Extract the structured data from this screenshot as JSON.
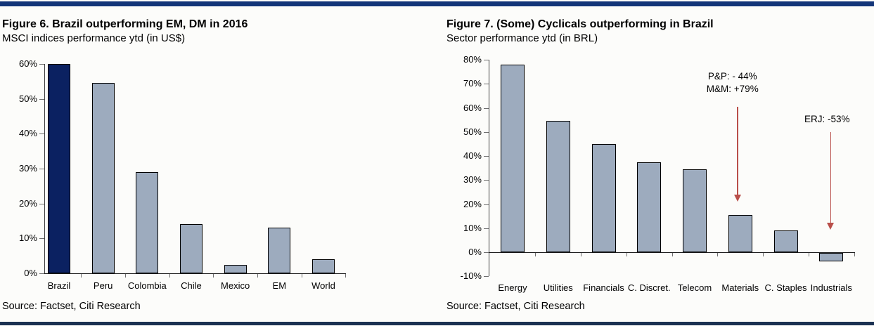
{
  "page": {
    "background": "#fcfcfa",
    "rule_top_color": "#133579",
    "rule_bottom_color": "#1b3152",
    "arrow_color": "#b94f4a"
  },
  "figures": [
    {
      "title": "Figure 6. Brazil outperforming EM, DM in 2016",
      "subtitle": "MSCI indices performance ytd (in US$)",
      "source": "Source: Factset, Citi Research",
      "chart_data": {
        "type": "bar",
        "categories": [
          "Brazil",
          "Peru",
          "Colombia",
          "Chile",
          "Mexico",
          "EM",
          "World"
        ],
        "values": [
          60,
          54.5,
          29,
          14,
          2.5,
          13,
          4
        ],
        "title": "Figure 6. Brazil outperforming EM, DM in 2016",
        "subtitle": "MSCI indices performance ytd (in US$)",
        "xlabel": "",
        "ylabel": "",
        "ylim": [
          0,
          60
        ],
        "ytick_step": 10,
        "ytick_labels": [
          "0%",
          "10%",
          "20%",
          "30%",
          "40%",
          "50%",
          "60%"
        ],
        "grid": false,
        "legend": false,
        "bar_color_default": "#9dabbe",
        "bar_color_highlight": "#0b2161",
        "highlight_index": 0,
        "annotations": []
      }
    },
    {
      "title": "Figure 7. (Some) Cyclicals outperforming in Brazil",
      "subtitle": "Sector performance ytd (in BRL)",
      "source": "Source: Factset, Citi Research",
      "chart_data": {
        "type": "bar",
        "categories": [
          "Energy",
          "Utilities",
          "Financials",
          "C. Discret.",
          "Telecom",
          "Materials",
          "C. Staples",
          "Industrials"
        ],
        "values": [
          78,
          54.5,
          45,
          37.5,
          34.5,
          15.5,
          9,
          -3.5
        ],
        "title": "Figure 7. (Some) Cyclicals outperforming in Brazil",
        "subtitle": "Sector performance ytd (in BRL)",
        "xlabel": "",
        "ylabel": "",
        "ylim": [
          -10,
          80
        ],
        "ytick_step": 10,
        "ytick_labels": [
          "-10%",
          "0%",
          "10%",
          "20%",
          "30%",
          "40%",
          "50%",
          "60%",
          "70%",
          "80%"
        ],
        "grid": false,
        "legend": false,
        "bar_color_default": "#9dabbe",
        "bar_color_highlight": "#9dabbe",
        "highlight_index": -1,
        "annotations": [
          {
            "lines": [
              "P&P: - 44%",
              "M&M: +79%"
            ],
            "target_category": "Materials"
          },
          {
            "lines": [
              "ERJ: -53%"
            ],
            "target_category": "Industrials"
          }
        ]
      }
    }
  ]
}
